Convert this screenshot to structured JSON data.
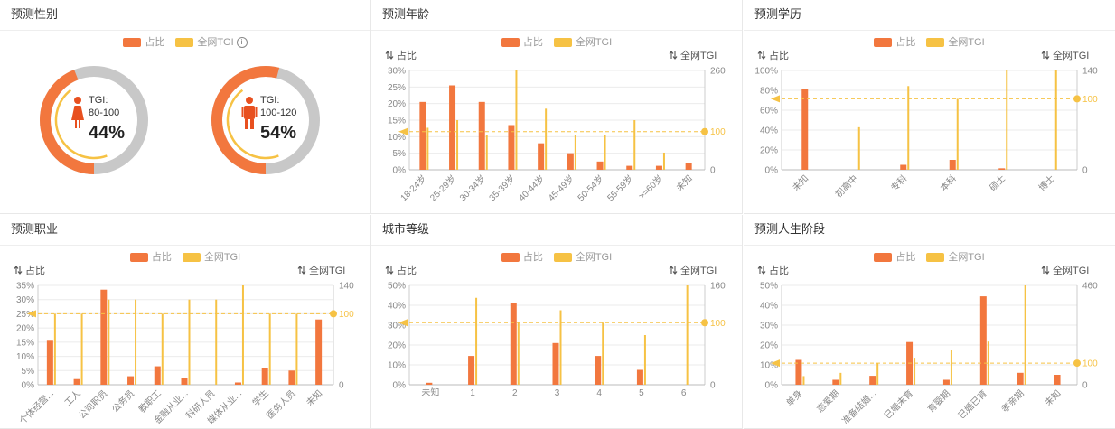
{
  "colors": {
    "share": "#F2773E",
    "tgi": "#F6C244",
    "ring_rest": "#C8C8C8",
    "grid": "#EBEBEB",
    "axis_text": "#888888",
    "gender_icon": "#E8501F"
  },
  "legend": {
    "share": "占比",
    "tgi": "全网TGI"
  },
  "axis_titles": {
    "left": "占比",
    "right": "全网TGI",
    "sort_icon": "sort-arrows-icon"
  },
  "panels": [
    {
      "title": "预测性别",
      "type": "gender",
      "items": [
        {
          "icon": "female-icon",
          "tgi_label": "TGI:",
          "tgi_range": "80-100",
          "percent_text": "44%",
          "share": 0.44
        },
        {
          "icon": "male-icon",
          "tgi_label": "TGI:",
          "tgi_range": "100-120",
          "percent_text": "54%",
          "share": 0.54
        }
      ]
    },
    {
      "title": "预测年龄",
      "type": "bar",
      "categories": [
        "18-24岁",
        "25-29岁",
        "30-34岁",
        "35-39岁",
        "40-44岁",
        "45-49岁",
        "50-54岁",
        "55-59岁",
        ">=60岁",
        "未知"
      ],
      "share": [
        20.5,
        25.5,
        20.5,
        13.5,
        8,
        5,
        2.5,
        1.2,
        1.2,
        2
      ],
      "tgi": [
        110,
        130,
        90,
        260,
        160,
        90,
        90,
        130,
        45,
        0
      ],
      "left_ticks": [
        "0%",
        "5%",
        "10%",
        "15%",
        "20%",
        "25%",
        "30%"
      ],
      "left_max": 30,
      "right_ticks": [
        "0",
        "100",
        "260"
      ],
      "right_max": 260,
      "ref_value": 100,
      "ref_label": "100",
      "rotate_x": true
    },
    {
      "title": "预测学历",
      "type": "bar",
      "categories": [
        "未知",
        "初高中",
        "专科",
        "本科",
        "硕士",
        "博士"
      ],
      "share": [
        81,
        0,
        5,
        10,
        1.5,
        0
      ],
      "tgi": [
        0,
        60,
        118,
        100,
        140,
        140
      ],
      "left_ticks": [
        "0%",
        "20%",
        "40%",
        "60%",
        "80%",
        "100%"
      ],
      "left_max": 100,
      "right_ticks": [
        "0",
        "100",
        "140"
      ],
      "right_max": 140,
      "ref_value": 100,
      "ref_label": "100",
      "rotate_x": true
    },
    {
      "title": "预测职业",
      "type": "bar",
      "categories": [
        "个体经营...",
        "工人",
        "公司职员",
        "公务员",
        "教职工",
        "金融从业...",
        "科研人员",
        "媒体从业...",
        "学生",
        "医务人员",
        "未知"
      ],
      "share": [
        15.5,
        2,
        33.5,
        3,
        6.5,
        2.5,
        0,
        0.8,
        6,
        5,
        23
      ],
      "tgi": [
        100,
        100,
        120,
        120,
        100,
        120,
        120,
        140,
        100,
        100,
        0
      ],
      "left_ticks": [
        "0%",
        "5%",
        "10%",
        "15%",
        "20%",
        "25%",
        "30%",
        "35%"
      ],
      "left_max": 35,
      "right_ticks": [
        "0",
        "100",
        "140"
      ],
      "right_max": 140,
      "ref_value": 100,
      "ref_label": "100",
      "rotate_x": true
    },
    {
      "title": "城市等级",
      "type": "bar",
      "categories": [
        "未知",
        "1",
        "2",
        "3",
        "4",
        "5",
        "6"
      ],
      "share": [
        1,
        14.5,
        41,
        21,
        14.5,
        7.5,
        0
      ],
      "tgi": [
        0,
        140,
        100,
        120,
        100,
        80,
        160
      ],
      "left_ticks": [
        "0%",
        "10%",
        "20%",
        "30%",
        "40%",
        "50%"
      ],
      "left_max": 50,
      "right_ticks": [
        "0",
        "100",
        "160"
      ],
      "right_max": 160,
      "ref_value": 100,
      "ref_label": "100",
      "rotate_x": false
    },
    {
      "title": "预测人生阶段",
      "type": "bar",
      "categories": [
        "单身",
        "恋爱期",
        "准备结婚...",
        "已婚未育",
        "育婴期",
        "已婚已育",
        "孝亲期",
        "未知"
      ],
      "share": [
        12.5,
        2.5,
        4.5,
        21.5,
        2.5,
        44.5,
        6,
        5
      ],
      "tgi": [
        40,
        55,
        100,
        125,
        160,
        200,
        460,
        0
      ],
      "left_ticks": [
        "0%",
        "10%",
        "20%",
        "30%",
        "40%",
        "50%"
      ],
      "left_max": 50,
      "right_ticks": [
        "0",
        "100",
        "460"
      ],
      "right_max": 460,
      "ref_value": 100,
      "ref_label": "100",
      "rotate_x": true
    }
  ],
  "chart_data": [
    {
      "type": "bar",
      "title": "预测年龄",
      "categories": [
        "18-24岁",
        "25-29岁",
        "30-34岁",
        "35-39岁",
        "40-44岁",
        "45-49岁",
        "50-54岁",
        "55-59岁",
        ">=60岁",
        "未知"
      ],
      "series": [
        {
          "name": "占比",
          "values": [
            20.5,
            25.5,
            20.5,
            13.5,
            8,
            5,
            2.5,
            1.2,
            1.2,
            2
          ],
          "axis": "left"
        },
        {
          "name": "全网TGI",
          "values": [
            110,
            130,
            90,
            260,
            160,
            90,
            90,
            130,
            45,
            0
          ],
          "axis": "right"
        }
      ],
      "ylabel": "占比",
      "y2label": "全网TGI",
      "ylim": [
        0,
        30
      ],
      "y2lim": [
        0,
        260
      ],
      "reference_line": 100,
      "legend": "top-center",
      "grid": true
    },
    {
      "type": "bar",
      "title": "预测学历",
      "categories": [
        "未知",
        "初高中",
        "专科",
        "本科",
        "硕士",
        "博士"
      ],
      "series": [
        {
          "name": "占比",
          "values": [
            81,
            0,
            5,
            10,
            1.5,
            0
          ],
          "axis": "left"
        },
        {
          "name": "全网TGI",
          "values": [
            0,
            60,
            118,
            100,
            140,
            140
          ],
          "axis": "right"
        }
      ],
      "ylabel": "占比",
      "y2label": "全网TGI",
      "ylim": [
        0,
        100
      ],
      "y2lim": [
        0,
        140
      ],
      "reference_line": 100,
      "legend": "top-center",
      "grid": true
    },
    {
      "type": "bar",
      "title": "预测职业",
      "categories": [
        "个体经营...",
        "工人",
        "公司职员",
        "公务员",
        "教职工",
        "金融从业...",
        "科研人员",
        "媒体从业...",
        "学生",
        "医务人员",
        "未知"
      ],
      "series": [
        {
          "name": "占比",
          "values": [
            15.5,
            2,
            33.5,
            3,
            6.5,
            2.5,
            0,
            0.8,
            6,
            5,
            23
          ],
          "axis": "left"
        },
        {
          "name": "全网TGI",
          "values": [
            100,
            100,
            120,
            120,
            100,
            120,
            120,
            140,
            100,
            100,
            0
          ],
          "axis": "right"
        }
      ],
      "ylabel": "占比",
      "y2label": "全网TGI",
      "ylim": [
        0,
        35
      ],
      "y2lim": [
        0,
        140
      ],
      "reference_line": 100,
      "legend": "top-center",
      "grid": true
    },
    {
      "type": "bar",
      "title": "城市等级",
      "categories": [
        "未知",
        "1",
        "2",
        "3",
        "4",
        "5",
        "6"
      ],
      "series": [
        {
          "name": "占比",
          "values": [
            1,
            14.5,
            41,
            21,
            14.5,
            7.5,
            0
          ],
          "axis": "left"
        },
        {
          "name": "全网TGI",
          "values": [
            0,
            140,
            100,
            120,
            100,
            80,
            160
          ],
          "axis": "right"
        }
      ],
      "ylabel": "占比",
      "y2label": "全网TGI",
      "ylim": [
        0,
        50
      ],
      "y2lim": [
        0,
        160
      ],
      "reference_line": 100,
      "legend": "top-center",
      "grid": true
    },
    {
      "type": "bar",
      "title": "预测人生阶段",
      "categories": [
        "单身",
        "恋爱期",
        "准备结婚...",
        "已婚未育",
        "育婴期",
        "已婚已育",
        "孝亲期",
        "未知"
      ],
      "series": [
        {
          "name": "占比",
          "values": [
            12.5,
            2.5,
            4.5,
            21.5,
            2.5,
            44.5,
            6,
            5
          ],
          "axis": "left"
        },
        {
          "name": "全网TGI",
          "values": [
            40,
            55,
            100,
            125,
            160,
            200,
            460,
            0
          ],
          "axis": "right"
        }
      ],
      "ylabel": "占比",
      "y2label": "全网TGI",
      "ylim": [
        0,
        50
      ],
      "y2lim": [
        0,
        460
      ],
      "reference_line": 100,
      "legend": "top-center",
      "grid": true
    },
    {
      "type": "pie",
      "title": "预测性别",
      "categories": [
        "female",
        "male"
      ],
      "values": [
        44,
        54
      ],
      "tgi_ranges": [
        "80-100",
        "100-120"
      ]
    }
  ]
}
